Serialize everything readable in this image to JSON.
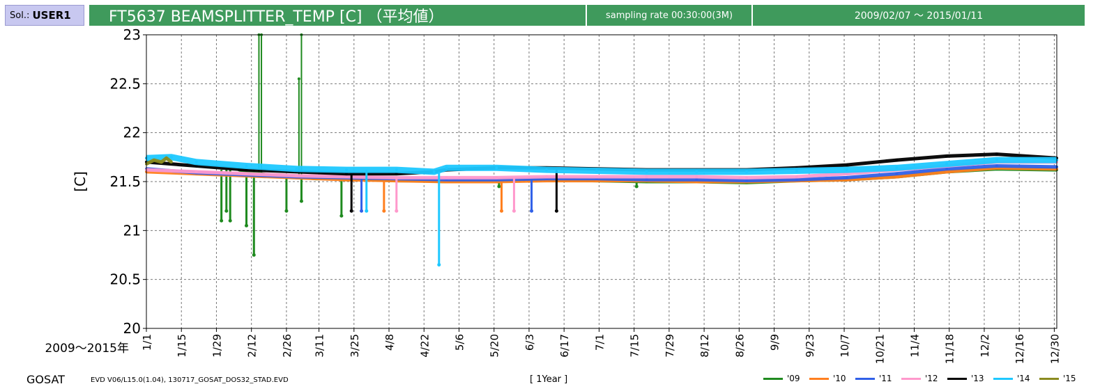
{
  "header": {
    "sol_prefix": "Sol.:",
    "sol_user": "USER1",
    "title": "FT5637 BEAMSPLITTER_TEMP [C] （平均値）",
    "sampling_rate": "sampling rate 00:30:00(3M)",
    "date_range": "2009/02/07 ～ 2015/01/11"
  },
  "footer": {
    "satellite": "GOSAT",
    "version": "EVD V06/L15.0(1.04), 130717_GOSAT_DOS32_STAD.EVD",
    "span": "[ 1Year ]"
  },
  "chart_data": {
    "type": "line",
    "ylabel": "[C]",
    "xlabel": "2009～2015年",
    "ylim": [
      20,
      23
    ],
    "yticks": [
      20,
      20.5,
      21,
      21.5,
      22,
      22.5,
      23
    ],
    "xlim": [
      0,
      364
    ],
    "x_tick_labels": [
      "1/1",
      "1/15",
      "1/29",
      "2/12",
      "2/26",
      "3/11",
      "3/25",
      "4/8",
      "4/22",
      "5/6",
      "5/20",
      "6/3",
      "6/17",
      "7/1",
      "7/15",
      "7/29",
      "8/12",
      "8/26",
      "9/9",
      "9/23",
      "10/7",
      "10/21",
      "11/4",
      "11/18",
      "12/2",
      "12/16",
      "12/30"
    ],
    "x_tick_days": [
      0,
      14,
      28,
      42,
      56,
      69,
      83,
      97,
      111,
      125,
      139,
      153,
      167,
      181,
      195,
      209,
      223,
      237,
      251,
      265,
      279,
      293,
      307,
      321,
      335,
      349,
      363
    ],
    "grid": true,
    "legend_position": "bottom-right",
    "series": [
      {
        "name": "'09",
        "color": "#1f8a1f",
        "x": [
          37,
          50,
          60,
          68,
          75,
          80,
          85,
          90,
          100,
          110,
          120,
          130,
          150,
          160,
          180,
          200,
          220,
          240,
          260,
          280,
          300,
          320,
          340,
          364
        ],
        "y": [
          21.62,
          21.56,
          21.55,
          21.53,
          21.54,
          21.52,
          21.53,
          21.52,
          21.51,
          21.51,
          21.5,
          21.51,
          21.52,
          21.52,
          21.51,
          21.5,
          21.5,
          21.49,
          21.51,
          21.52,
          21.55,
          21.6,
          21.63,
          21.62
        ],
        "dips": [
          [
            30,
            21.1
          ],
          [
            32,
            21.2
          ],
          [
            33.5,
            21.1
          ],
          [
            40,
            21.05
          ],
          [
            43,
            20.75
          ],
          [
            56,
            21.2
          ],
          [
            62,
            21.3
          ],
          [
            78,
            21.15
          ],
          [
            141,
            21.45
          ],
          [
            196,
            21.45
          ]
        ],
        "spikes": [
          [
            45,
            23.0
          ],
          [
            46,
            23.0
          ],
          [
            62,
            23.0
          ],
          [
            61,
            22.55
          ]
        ]
      },
      {
        "name": "'10",
        "color": "#ff7f1f",
        "x": [
          0,
          20,
          40,
          60,
          80,
          100,
          120,
          140,
          160,
          180,
          200,
          220,
          240,
          260,
          280,
          300,
          320,
          340,
          364
        ],
        "y": [
          21.6,
          21.58,
          21.56,
          21.54,
          21.52,
          21.51,
          21.5,
          21.5,
          21.51,
          21.51,
          21.51,
          21.5,
          21.5,
          21.51,
          21.52,
          21.55,
          21.6,
          21.64,
          21.63
        ],
        "dips": [
          [
            95,
            21.2
          ],
          [
            142,
            21.2
          ]
        ],
        "spikes": []
      },
      {
        "name": "'11",
        "color": "#3060e8",
        "x": [
          0,
          20,
          40,
          60,
          80,
          100,
          120,
          140,
          160,
          180,
          200,
          220,
          240,
          260,
          280,
          300,
          320,
          340,
          364
        ],
        "y": [
          21.63,
          21.59,
          21.57,
          21.55,
          21.54,
          21.53,
          21.52,
          21.52,
          21.53,
          21.53,
          21.52,
          21.52,
          21.51,
          21.52,
          21.54,
          21.58,
          21.63,
          21.66,
          21.65
        ],
        "dips": [
          [
            86,
            21.2
          ],
          [
            154,
            21.2
          ]
        ],
        "spikes": []
      },
      {
        "name": "'12",
        "color": "#ff99cc",
        "x": [
          0,
          20,
          40,
          60,
          80,
          100,
          120,
          140,
          160,
          180,
          200,
          220,
          240,
          260,
          280,
          300,
          320,
          340,
          364
        ],
        "y": [
          21.62,
          21.6,
          21.58,
          21.56,
          21.55,
          21.54,
          21.54,
          21.54,
          21.55,
          21.55,
          21.55,
          21.55,
          21.54,
          21.55,
          21.58,
          21.62,
          21.66,
          21.7,
          21.7
        ],
        "dips": [
          [
            100,
            21.2
          ],
          [
            147,
            21.2
          ]
        ],
        "spikes": []
      },
      {
        "name": "'13",
        "color": "#000000",
        "x": [
          0,
          20,
          40,
          60,
          80,
          100,
          115,
          120,
          140,
          160,
          180,
          200,
          220,
          240,
          260,
          280,
          300,
          320,
          340,
          364
        ],
        "y": [
          21.7,
          21.66,
          21.62,
          21.6,
          21.58,
          21.58,
          21.6,
          21.62,
          21.64,
          21.64,
          21.63,
          21.62,
          21.62,
          21.62,
          21.64,
          21.67,
          21.72,
          21.76,
          21.78,
          21.74
        ],
        "dips": [
          [
            82,
            21.2
          ],
          [
            164,
            21.2
          ]
        ],
        "spikes": []
      },
      {
        "name": "'14",
        "color": "#1ec8ff",
        "x": [
          0,
          10,
          20,
          40,
          60,
          80,
          100,
          115,
          120,
          140,
          160,
          180,
          200,
          220,
          240,
          260,
          280,
          300,
          320,
          340,
          364
        ],
        "y": [
          21.74,
          21.75,
          21.7,
          21.66,
          21.63,
          21.62,
          21.62,
          21.6,
          21.64,
          21.64,
          21.62,
          21.61,
          21.6,
          21.6,
          21.6,
          21.61,
          21.62,
          21.64,
          21.68,
          21.72,
          21.72
        ],
        "dips": [
          [
            88,
            21.2
          ],
          [
            117,
            20.65
          ]
        ],
        "spikes": []
      },
      {
        "name": "'15",
        "color": "#8a8a1f",
        "x": [
          0,
          3,
          6,
          8,
          10
        ],
        "y": [
          21.68,
          21.72,
          21.7,
          21.74,
          21.7
        ],
        "dips": [],
        "spikes": []
      }
    ]
  }
}
